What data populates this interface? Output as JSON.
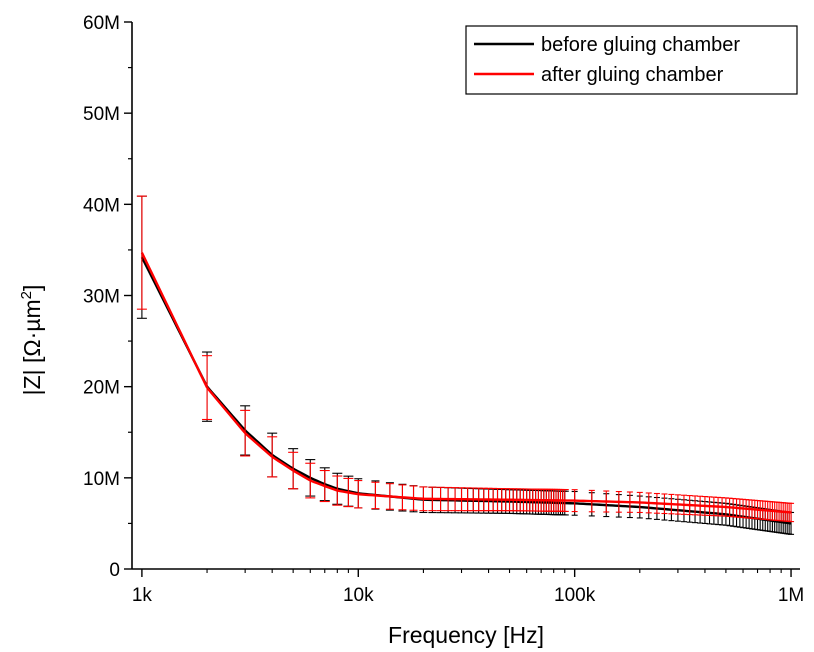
{
  "chart_data": {
    "type": "line",
    "title": "",
    "xlabel": "Frequency [Hz]",
    "ylabel_main": "|Z| [Ω·µm",
    "ylabel_sup": "2",
    "ylabel_close": "]",
    "x_scale": "log",
    "xlim": [
      900,
      1100000
    ],
    "ylim": [
      0,
      60000000
    ],
    "x_ticks": [
      {
        "value": 1000,
        "label": "1k"
      },
      {
        "value": 10000,
        "label": "10k"
      },
      {
        "value": 100000,
        "label": "100k"
      },
      {
        "value": 1000000,
        "label": "1M"
      }
    ],
    "y_ticks": [
      {
        "value": 0,
        "label": "0"
      },
      {
        "value": 10000000,
        "label": "10M"
      },
      {
        "value": 20000000,
        "label": "20M"
      },
      {
        "value": 30000000,
        "label": "30M"
      },
      {
        "value": 40000000,
        "label": "40M"
      },
      {
        "value": 50000000,
        "label": "50M"
      },
      {
        "value": 60000000,
        "label": "60M"
      }
    ],
    "grid": false,
    "legend_position": "top-right",
    "series": [
      {
        "name": "before gluing chamber",
        "color": "#000000",
        "points": [
          [
            1000,
            34200000
          ],
          [
            2000,
            20000000
          ],
          [
            3000,
            15200000
          ],
          [
            4000,
            12500000
          ],
          [
            5000,
            11000000
          ],
          [
            6000,
            10000000
          ],
          [
            7000,
            9300000
          ],
          [
            8000,
            8800000
          ],
          [
            10000,
            8300000
          ],
          [
            20000,
            7600000
          ],
          [
            50000,
            7400000
          ],
          [
            100000,
            7200000
          ],
          [
            200000,
            6800000
          ],
          [
            500000,
            6000000
          ],
          [
            1000000,
            5000000
          ]
        ],
        "errors": [
          [
            1000,
            6700000
          ],
          [
            2000,
            3800000
          ],
          [
            3000,
            2700000
          ],
          [
            4000,
            2400000
          ],
          [
            5000,
            2200000
          ],
          [
            6000,
            2000000
          ],
          [
            7000,
            1800000
          ],
          [
            8000,
            1700000
          ],
          [
            10000,
            1600000
          ],
          [
            20000,
            1400000
          ],
          [
            50000,
            1300000
          ],
          [
            100000,
            1300000
          ],
          [
            200000,
            1200000
          ],
          [
            500000,
            1200000
          ],
          [
            1000000,
            1200000
          ]
        ]
      },
      {
        "name": "after gluing chamber",
        "color": "#ff0000",
        "points": [
          [
            1000,
            34700000
          ],
          [
            2000,
            19900000
          ],
          [
            3000,
            14900000
          ],
          [
            4000,
            12300000
          ],
          [
            5000,
            10800000
          ],
          [
            6000,
            9700000
          ],
          [
            7000,
            9100000
          ],
          [
            8000,
            8600000
          ],
          [
            10000,
            8200000
          ],
          [
            20000,
            7700000
          ],
          [
            50000,
            7600000
          ],
          [
            100000,
            7500000
          ],
          [
            200000,
            7300000
          ],
          [
            500000,
            6800000
          ],
          [
            1000000,
            6200000
          ]
        ],
        "errors": [
          [
            1000,
            6200000
          ],
          [
            2000,
            3500000
          ],
          [
            3000,
            2500000
          ],
          [
            4000,
            2200000
          ],
          [
            5000,
            2000000
          ],
          [
            6000,
            1900000
          ],
          [
            7000,
            1700000
          ],
          [
            8000,
            1600000
          ],
          [
            10000,
            1500000
          ],
          [
            20000,
            1300000
          ],
          [
            50000,
            1200000
          ],
          [
            100000,
            1200000
          ],
          [
            200000,
            1100000
          ],
          [
            500000,
            1000000
          ],
          [
            1000000,
            1000000
          ]
        ]
      }
    ]
  }
}
